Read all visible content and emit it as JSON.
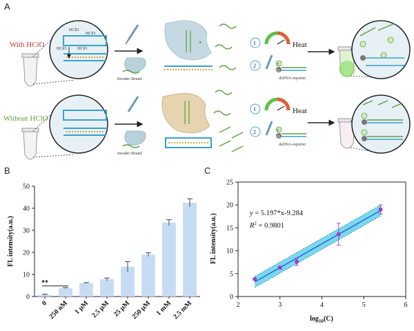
{
  "panel_a": {
    "letter": "A",
    "row1_label": "With HClO",
    "row2_label": "Without HClO",
    "hclo_tags": [
      "HClO",
      "HClO",
      "HClO",
      "HClO"
    ],
    "invader_label_1": "Invader Strand",
    "invader_label_2": "Invader Strand",
    "heat_label_1": "Heat",
    "heat_label_2": "Heat",
    "step1": "1",
    "step2": "2",
    "reporter_label_1": "dsDNA-reporter",
    "reporter_label_2": "dsDNA-reporter",
    "f_marker": "F",
    "q_marker": "Q",
    "colors": {
      "with": "#c0392b",
      "without": "#5a9e3a",
      "fluor": "#7ed957"
    }
  },
  "panel_b": {
    "letter": "B"
  },
  "panel_c": {
    "letter": "C"
  },
  "chart_data": [
    {
      "type": "bar",
      "categories": [
        "0",
        "250 nM",
        "1 μM",
        "2.5 μM",
        "25 μM",
        "250 μM",
        "1 mM",
        "2.5 mM"
      ],
      "values": [
        0.8,
        3.8,
        6.1,
        7.8,
        13.5,
        19.0,
        33.5,
        42.5
      ],
      "errors": [
        0.2,
        0.3,
        0.2,
        0.6,
        2.3,
        0.8,
        1.3,
        1.8
      ],
      "ylabel": "FL intensity(a.u.)",
      "xlabel": "",
      "ylim": [
        0,
        50
      ],
      "yticks": [
        0,
        10,
        20,
        30,
        40,
        50
      ],
      "significance": "**",
      "bar_color": "#c6dcf4"
    },
    {
      "type": "scatter",
      "x": [
        2.4,
        3.0,
        3.4,
        4.4,
        5.4
      ],
      "y": [
        3.8,
        6.3,
        7.6,
        13.6,
        19.0
      ],
      "errors": [
        0.2,
        0.3,
        0.8,
        2.4,
        1.0
      ],
      "fit_equation_lhs": "y",
      "fit_equation_rhs": " = 5.197*x-9.284",
      "fit_slope": 5.197,
      "fit_intercept": -9.284,
      "r2_label": "R",
      "r2_sup": "2",
      "r2_value": " = 0.9801",
      "xlabel_main": "log",
      "xlabel_sub": "10",
      "xlabel_tail": "(C)",
      "ylabel": "FL intensity(a.u.)",
      "xlim": [
        2,
        6
      ],
      "ylim": [
        0,
        25
      ],
      "xticks": [
        2,
        3,
        4,
        5,
        6
      ],
      "yticks": [
        0,
        5,
        10,
        15,
        20,
        25
      ],
      "point_color": "#9b3fc4",
      "band_color": "#3fc8e8"
    }
  ]
}
